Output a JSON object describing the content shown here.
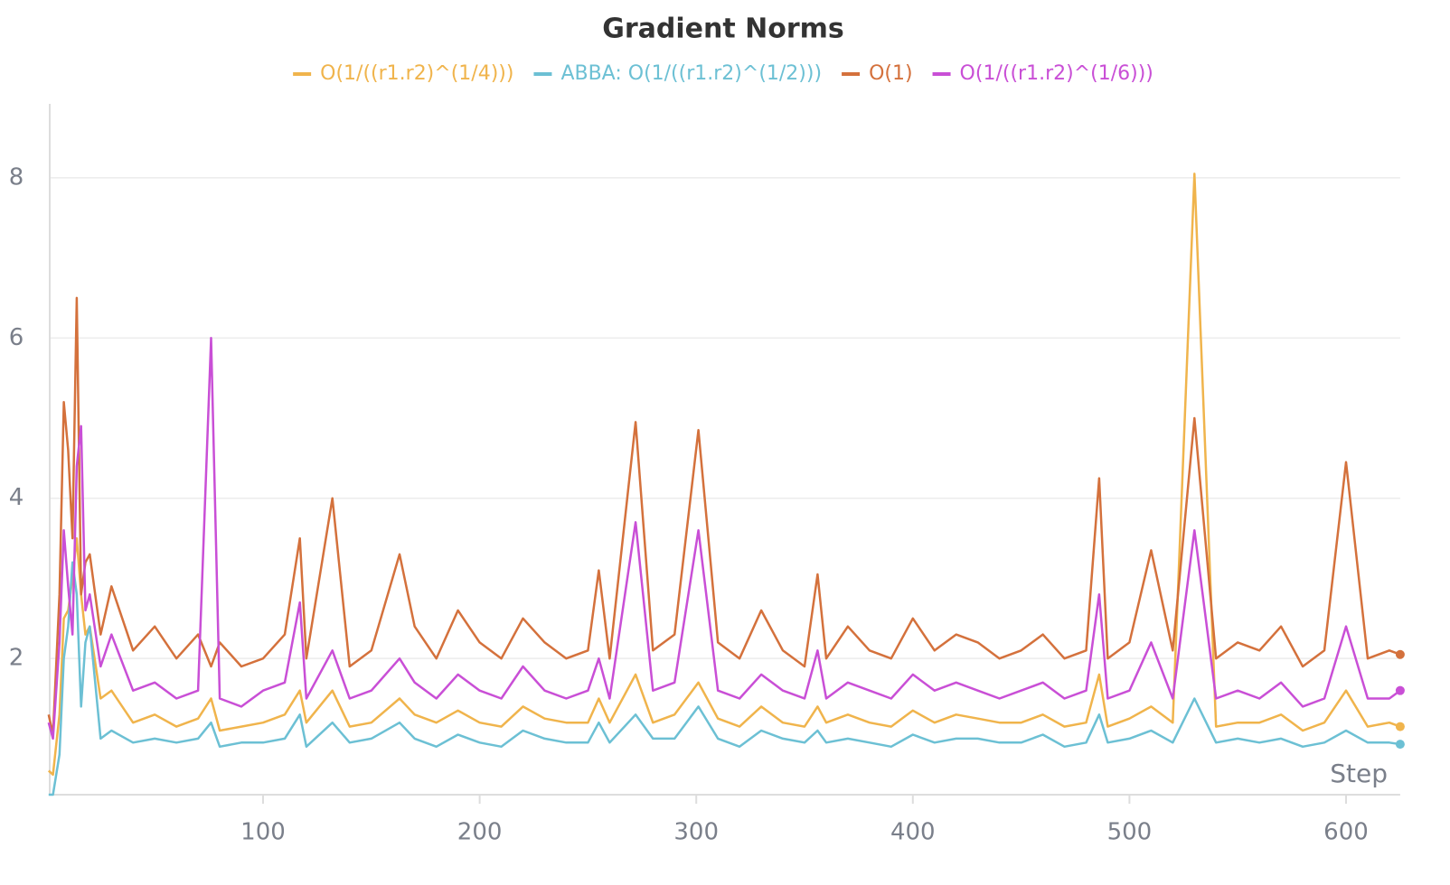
{
  "chart_data": {
    "type": "line",
    "title": "Gradient Norms",
    "x_label": "Step",
    "x": [
      1,
      3,
      6,
      8,
      10,
      12,
      14,
      16,
      18,
      20,
      25,
      30,
      40,
      50,
      60,
      70,
      76,
      80,
      90,
      100,
      110,
      117,
      120,
      132,
      140,
      150,
      163,
      170,
      180,
      190,
      200,
      210,
      220,
      230,
      240,
      250,
      255,
      260,
      272,
      280,
      290,
      301,
      310,
      320,
      330,
      340,
      350,
      356,
      360,
      370,
      380,
      390,
      400,
      410,
      420,
      430,
      440,
      450,
      460,
      470,
      480,
      486,
      490,
      500,
      510,
      520,
      530,
      540,
      550,
      560,
      570,
      580,
      590,
      600,
      610,
      620,
      625
    ],
    "series": [
      {
        "name": "O(1/((r1.r2)^(1/4)))",
        "color": "#f0b44c",
        "values": [
          0.6,
          0.55,
          1.3,
          2.5,
          2.6,
          3.0,
          3.5,
          2.8,
          2.3,
          2.4,
          1.5,
          1.6,
          1.2,
          1.3,
          1.15,
          1.25,
          1.5,
          1.1,
          1.15,
          1.2,
          1.3,
          1.6,
          1.2,
          1.6,
          1.15,
          1.2,
          1.5,
          1.3,
          1.2,
          1.35,
          1.2,
          1.15,
          1.4,
          1.25,
          1.2,
          1.2,
          1.5,
          1.2,
          1.8,
          1.2,
          1.3,
          1.7,
          1.25,
          1.15,
          1.4,
          1.2,
          1.15,
          1.4,
          1.2,
          1.3,
          1.2,
          1.15,
          1.35,
          1.2,
          1.3,
          1.25,
          1.2,
          1.2,
          1.3,
          1.15,
          1.2,
          1.8,
          1.15,
          1.25,
          1.4,
          1.2,
          8.05,
          1.15,
          1.2,
          1.2,
          1.3,
          1.1,
          1.2,
          1.6,
          1.15,
          1.2,
          1.15
        ]
      },
      {
        "name": "ABBA: O(1/((r1.r2)^(1/2)))",
        "color": "#6cc0d4",
        "values": [
          0.3,
          0.3,
          0.8,
          2.0,
          2.4,
          3.2,
          2.8,
          1.4,
          2.2,
          2.4,
          1.0,
          1.1,
          0.95,
          1.0,
          0.95,
          1.0,
          1.2,
          0.9,
          0.95,
          0.95,
          1.0,
          1.3,
          0.9,
          1.2,
          0.95,
          1.0,
          1.2,
          1.0,
          0.9,
          1.05,
          0.95,
          0.9,
          1.1,
          1.0,
          0.95,
          0.95,
          1.2,
          0.95,
          1.3,
          1.0,
          1.0,
          1.4,
          1.0,
          0.9,
          1.1,
          1.0,
          0.95,
          1.1,
          0.95,
          1.0,
          0.95,
          0.9,
          1.05,
          0.95,
          1.0,
          1.0,
          0.95,
          0.95,
          1.05,
          0.9,
          0.95,
          1.3,
          0.95,
          1.0,
          1.1,
          0.95,
          1.5,
          0.95,
          1.0,
          0.95,
          1.0,
          0.9,
          0.95,
          1.1,
          0.95,
          0.95,
          0.93
        ]
      },
      {
        "name": "O(1)",
        "color": "#d4713c",
        "values": [
          1.3,
          1.05,
          2.8,
          5.2,
          4.6,
          3.5,
          6.5,
          2.8,
          3.2,
          3.3,
          2.3,
          2.9,
          2.1,
          2.4,
          2.0,
          2.3,
          1.9,
          2.2,
          1.9,
          2.0,
          2.3,
          3.5,
          2.0,
          4.0,
          1.9,
          2.1,
          3.3,
          2.4,
          2.0,
          2.6,
          2.2,
          2.0,
          2.5,
          2.2,
          2.0,
          2.1,
          3.1,
          2.0,
          4.95,
          2.1,
          2.3,
          4.85,
          2.2,
          2.0,
          2.6,
          2.1,
          1.9,
          3.05,
          2.0,
          2.4,
          2.1,
          2.0,
          2.5,
          2.1,
          2.3,
          2.2,
          2.0,
          2.1,
          2.3,
          2.0,
          2.1,
          4.25,
          2.0,
          2.2,
          3.35,
          2.1,
          5.0,
          2.0,
          2.2,
          2.1,
          2.4,
          1.9,
          2.1,
          4.45,
          2.0,
          2.1,
          2.05
        ]
      },
      {
        "name": "O(1/((r1.r2)^(1/6)))",
        "color": "#c94fd6",
        "values": [
          1.2,
          1.0,
          2.2,
          3.6,
          2.9,
          2.3,
          4.4,
          4.9,
          2.6,
          2.8,
          1.9,
          2.3,
          1.6,
          1.7,
          1.5,
          1.6,
          6.0,
          1.5,
          1.4,
          1.6,
          1.7,
          2.7,
          1.5,
          2.1,
          1.5,
          1.6,
          2.0,
          1.7,
          1.5,
          1.8,
          1.6,
          1.5,
          1.9,
          1.6,
          1.5,
          1.6,
          2.0,
          1.5,
          3.7,
          1.6,
          1.7,
          3.6,
          1.6,
          1.5,
          1.8,
          1.6,
          1.5,
          2.1,
          1.5,
          1.7,
          1.6,
          1.5,
          1.8,
          1.6,
          1.7,
          1.6,
          1.5,
          1.6,
          1.7,
          1.5,
          1.6,
          2.8,
          1.5,
          1.6,
          2.2,
          1.5,
          3.6,
          1.5,
          1.6,
          1.5,
          1.7,
          1.4,
          1.5,
          2.4,
          1.5,
          1.5,
          1.6
        ]
      }
    ],
    "xlim": [
      1,
      625
    ],
    "xticks": [
      100,
      200,
      300,
      400,
      500,
      600
    ],
    "ylim": [
      0.3,
      8.9
    ],
    "yticks": [
      2,
      4,
      6,
      8
    ],
    "grid": true
  }
}
